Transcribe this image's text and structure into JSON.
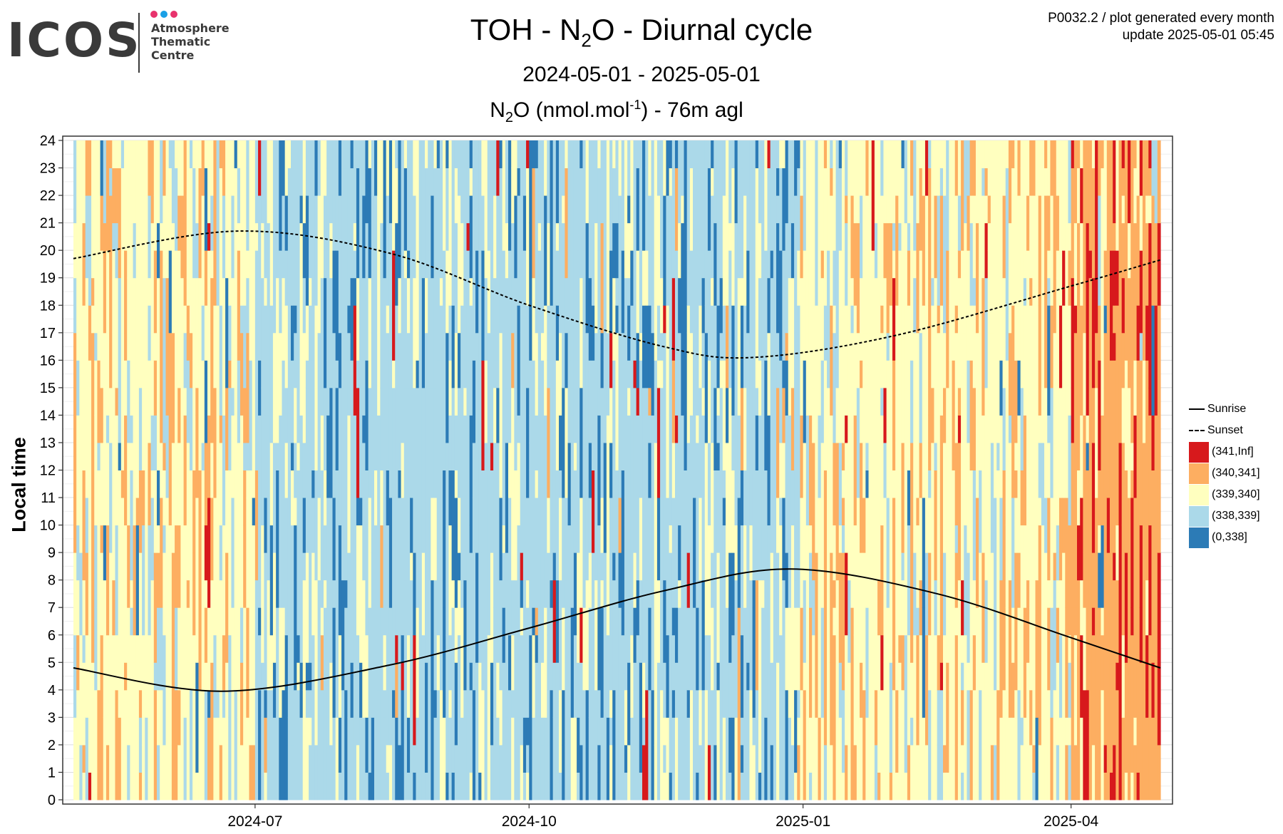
{
  "logo": {
    "wordmark": "ICOS",
    "sub_lines": [
      "Atmosphere",
      "Thematic",
      "Centre"
    ],
    "dot_colors": [
      "#e8336d",
      "#1aa0e6",
      "#e8336d"
    ]
  },
  "meta": {
    "line1": "P0032.2 / plot generated every month",
    "line2": "update  2025-05-01 05:45"
  },
  "title": {
    "prefix": "TOH - N",
    "subscript": "2",
    "suffix": "O - Diurnal cycle"
  },
  "period": "2024-05-01 - 2025-05-01",
  "subtitle": {
    "prefix": "N",
    "subscript": "2",
    "middle": "O (nmol.mol",
    "superscript": "-1",
    "suffix": ") - 76m agl"
  },
  "chart_data": {
    "type": "heatmap",
    "ylabel": "Local time",
    "xlabel": "",
    "x_range": [
      "2024-05-01",
      "2025-05-01"
    ],
    "ylim": [
      0,
      24
    ],
    "y_ticks": [
      0,
      1,
      2,
      3,
      4,
      5,
      6,
      7,
      8,
      9,
      10,
      11,
      12,
      13,
      14,
      15,
      16,
      17,
      18,
      19,
      20,
      21,
      22,
      23,
      24
    ],
    "x_ticks": [
      {
        "date": "2024-07-01",
        "label": "2024-07"
      },
      {
        "date": "2024-10-01",
        "label": "2024-10"
      },
      {
        "date": "2025-01-01",
        "label": "2025-01"
      },
      {
        "date": "2025-04-01",
        "label": "2025-04"
      }
    ],
    "grid": true,
    "legend_position": "right",
    "classes": [
      {
        "label": "(341,Inf]",
        "color": "#d7191c"
      },
      {
        "label": "(340,341]",
        "color": "#fdae61"
      },
      {
        "label": "(339,340]",
        "color": "#ffffbf"
      },
      {
        "label": "(338,339]",
        "color": "#abd9e9"
      },
      {
        "label": "(0,338]",
        "color": "#2c7bb6"
      }
    ],
    "dominant_class_by_month": [
      {
        "month": "2024-05",
        "class": "(339,340]"
      },
      {
        "month": "2024-06",
        "class": "(339,340]"
      },
      {
        "month": "2024-07",
        "class": "(338,339]"
      },
      {
        "month": "2024-08",
        "class": "(338,339]"
      },
      {
        "month": "2024-09",
        "class": "(338,339]"
      },
      {
        "month": "2024-10",
        "class": "(338,339]"
      },
      {
        "month": "2024-11",
        "class": "(338,339]"
      },
      {
        "month": "2024-12",
        "class": "(338,339]"
      },
      {
        "month": "2025-01",
        "class": "(339,340]"
      },
      {
        "month": "2025-02",
        "class": "(339,340]"
      },
      {
        "month": "2025-03",
        "class": "(339,340]"
      },
      {
        "month": "2025-04",
        "class": "(340,341]"
      }
    ],
    "series": [
      {
        "name": "Sunrise",
        "line_style": "solid",
        "points": [
          {
            "date": "2024-05-01",
            "hour": 4.8
          },
          {
            "date": "2024-06-20",
            "hour": 3.95
          },
          {
            "date": "2024-08-15",
            "hour": 4.9
          },
          {
            "date": "2024-10-01",
            "hour": 6.25
          },
          {
            "date": "2024-11-15",
            "hour": 7.6
          },
          {
            "date": "2024-12-28",
            "hour": 8.4
          },
          {
            "date": "2025-02-15",
            "hour": 7.5
          },
          {
            "date": "2025-04-01",
            "hour": 5.9
          },
          {
            "date": "2025-05-01",
            "hour": 4.8
          }
        ]
      },
      {
        "name": "Sunset",
        "line_style": "dashed",
        "points": [
          {
            "date": "2024-05-01",
            "hour": 19.7
          },
          {
            "date": "2024-06-25",
            "hour": 20.7
          },
          {
            "date": "2024-08-15",
            "hour": 19.9
          },
          {
            "date": "2024-10-01",
            "hour": 18.0
          },
          {
            "date": "2024-11-15",
            "hour": 16.5
          },
          {
            "date": "2024-12-15",
            "hour": 16.1
          },
          {
            "date": "2025-02-01",
            "hour": 16.9
          },
          {
            "date": "2025-04-01",
            "hour": 18.7
          },
          {
            "date": "2025-05-01",
            "hour": 19.65
          }
        ]
      }
    ]
  },
  "legend": {
    "lines": [
      {
        "label": "Sunrise",
        "style": "solid"
      },
      {
        "label": "Sunset",
        "style": "dashed"
      }
    ]
  }
}
